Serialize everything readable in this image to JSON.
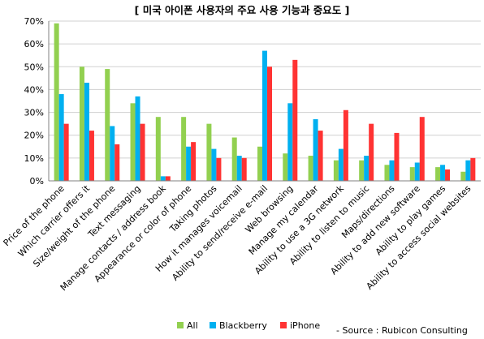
{
  "chart_data": {
    "type": "bar",
    "title": "[ 미국 아이폰 사용자의 주요 사용 기능과 중요도 ]",
    "xlabel": "",
    "ylabel": "",
    "ylim": [
      0,
      70
    ],
    "yticks": [
      "0%",
      "10%",
      "20%",
      "30%",
      "40%",
      "50%",
      "60%",
      "70%"
    ],
    "grid": true,
    "legend_position": "bottom",
    "categories": [
      "Price of the phone",
      "Which carrier offers it",
      "Size/weight of the phone",
      "Text messaging",
      "Manage contacts / address book",
      "Appearance or color of phone",
      "Taking photos",
      "How it manages voicemail",
      "Ability to send/receive e-mail",
      "Web browsing",
      "Manage my calendar",
      "Ability to use a 3G network",
      "Ability to listen to music",
      "Maps/directions",
      "Ability to add new software",
      "Ability to play games",
      "Ability to access social websites"
    ],
    "series": [
      {
        "name": "All",
        "color": "#92d050",
        "values": [
          69,
          50,
          49,
          34,
          28,
          28,
          25,
          19,
          15,
          12,
          11,
          9,
          9,
          7,
          6,
          6,
          4
        ]
      },
      {
        "name": "Blackberry",
        "color": "#00b0f0",
        "values": [
          38,
          43,
          24,
          37,
          2,
          15,
          14,
          11,
          57,
          34,
          27,
          14,
          11,
          9,
          8,
          7,
          9
        ]
      },
      {
        "name": "iPhone",
        "color": "#ff3333",
        "values": [
          25,
          22,
          16,
          25,
          2,
          17,
          10,
          10,
          50,
          53,
          22,
          31,
          25,
          21,
          28,
          5,
          10
        ]
      }
    ]
  },
  "source": "- Source : Rubicon Consulting"
}
